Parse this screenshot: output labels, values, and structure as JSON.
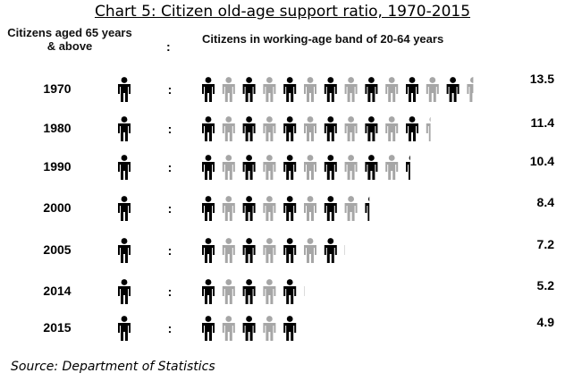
{
  "title": "Chart 5: Citizen old-age support ratio, 1970-2015",
  "header": {
    "elderly_label": "Citizens aged 65 years & above",
    "separator": ":",
    "working_label": "Citizens in working-age band of 20-64 years"
  },
  "source": "Source: Department of Statistics",
  "colors": {
    "dark": "#000000",
    "light": "#a6a6a6"
  },
  "chart_data": {
    "type": "bar",
    "title": "Chart 5: Citizen old-age support ratio, 1970-2015",
    "categories": [
      "1970",
      "1980",
      "1990",
      "2000",
      "2005",
      "2014",
      "2015"
    ],
    "values": [
      13.5,
      11.4,
      10.4,
      8.4,
      7.2,
      5.2,
      4.9
    ],
    "xlabel": "Citizens in working-age band of 20-64 years",
    "ylabel": "Citizens aged 65 years & above",
    "icon": "person-icon",
    "grid": false,
    "legend": "none"
  }
}
